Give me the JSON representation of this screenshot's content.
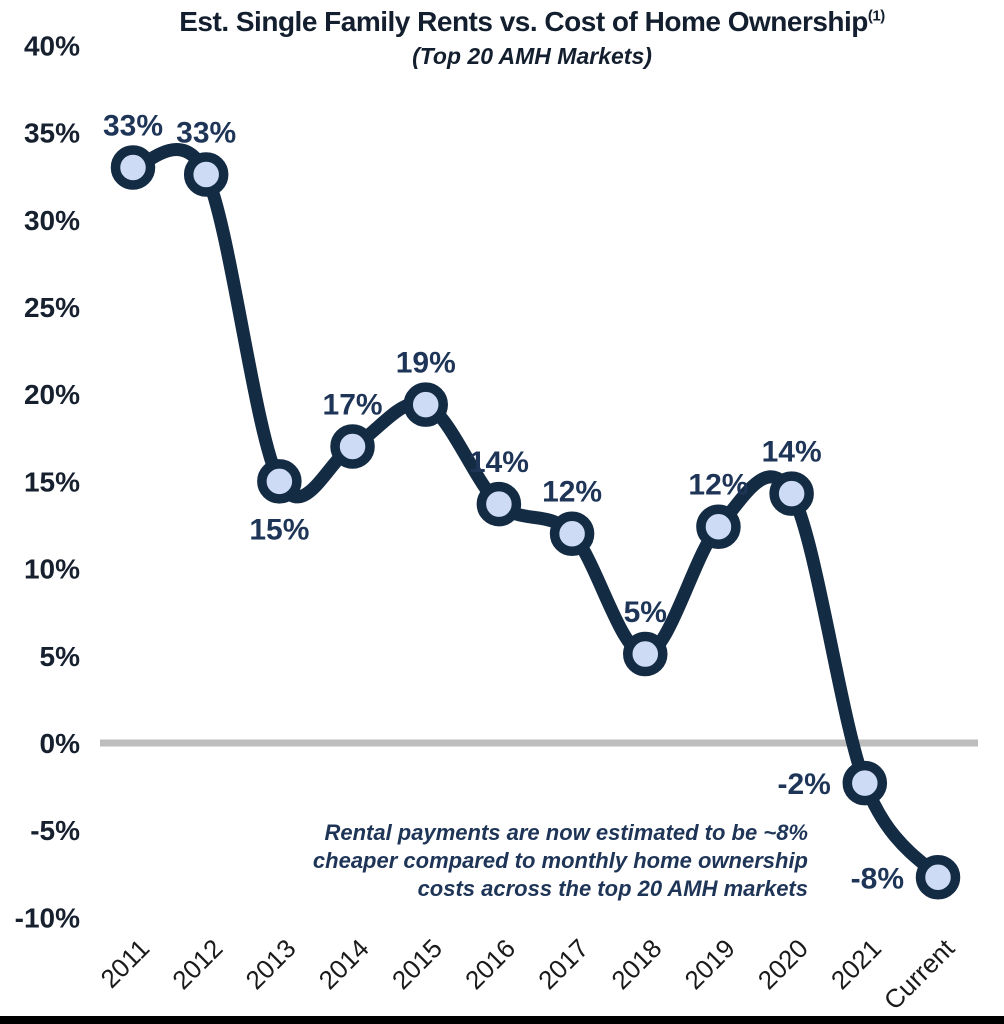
{
  "chart_data": {
    "type": "line",
    "title": "Est. Single Family Rents vs. Cost of Home Ownership",
    "title_superscript": "(1)",
    "subtitle": "(Top 20 AMH Markets)",
    "xlabel": "",
    "ylabel": "",
    "categories": [
      "2011",
      "2012",
      "2013",
      "2014",
      "2015",
      "2016",
      "2017",
      "2018",
      "2019",
      "2020",
      "2021",
      "Current"
    ],
    "values": [
      33,
      33,
      15,
      17,
      19,
      14,
      12,
      5,
      12,
      14,
      -2,
      -8
    ],
    "labels": [
      "33%",
      "33%",
      "15%",
      "17%",
      "19%",
      "14%",
      "12%",
      "5%",
      "12%",
      "14%",
      "-2%",
      "-8%"
    ],
    "plot_values_est": [
      33,
      32.6,
      15,
      17,
      19.4,
      13.7,
      12,
      5.1,
      12.4,
      14.3,
      -2.3,
      -7.7
    ],
    "label_positions": [
      "above",
      "above",
      "below",
      "above",
      "above",
      "above",
      "above",
      "above",
      "above",
      "above",
      "left",
      "left"
    ],
    "ylim": [
      -10,
      40
    ],
    "ytick_step": 5,
    "ytick_labels": [
      "40%",
      "35%",
      "30%",
      "25%",
      "20%",
      "15%",
      "10%",
      "5%",
      "0%",
      "-5%",
      "-10%"
    ],
    "grid": false,
    "legend": "none",
    "zero_line": true,
    "line_smoothed": true,
    "annotation": {
      "lines": [
        "Rental payments are now estimated to be ~8%",
        "cheaper compared to monthly home ownership",
        "costs across the top 20 AMH markets"
      ],
      "align": "right"
    },
    "colors": {
      "line": "#142B44",
      "marker_fill": "#CDDCF4",
      "marker_ring": "#142B44",
      "data_label": "#1E3557",
      "zero_line": "#BDBDBD",
      "y_axis_label": "#16202F",
      "x_axis_label": "#1A1A1A",
      "title": "#131F2E"
    }
  }
}
